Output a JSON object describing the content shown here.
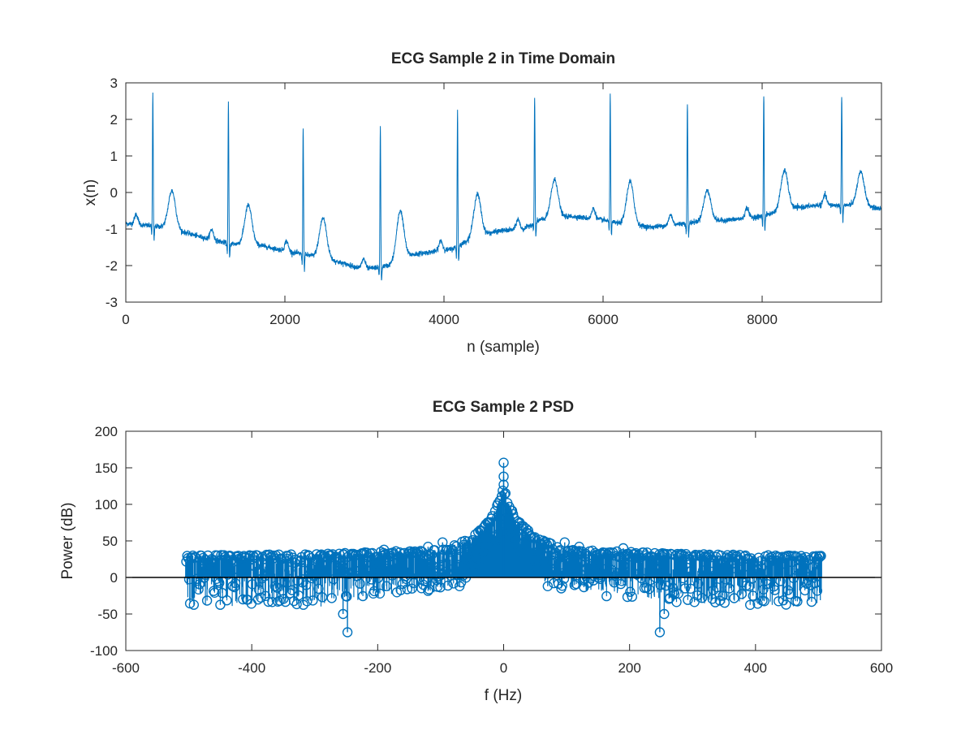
{
  "figure": {
    "background": "#ffffff",
    "axis_color": "#262626",
    "series_color": "#0072BD",
    "baseline_color": "#000000"
  },
  "chart_data": [
    {
      "type": "line",
      "title": "ECG Sample 2 in Time Domain",
      "xlabel": "n (sample)",
      "ylabel": "x(n)",
      "xlim": [
        0,
        9500
      ],
      "ylim": [
        -3,
        3
      ],
      "xticks": [
        0,
        2000,
        4000,
        6000,
        8000
      ],
      "xtick_labels": [
        "0",
        "2000",
        "4000",
        "6000",
        "8000"
      ],
      "yticks": [
        -3,
        -2,
        -1,
        0,
        1,
        2,
        3
      ],
      "ytick_labels": [
        "-3",
        "-2",
        "-1",
        "0",
        "1",
        "2",
        "3"
      ],
      "grid": false,
      "series": [
        {
          "color": "#0072BD",
          "baseline": [
            [
              0,
              -0.85
            ],
            [
              500,
              -0.95
            ],
            [
              1000,
              -1.25
            ],
            [
              1300,
              -1.4
            ],
            [
              1700,
              -1.45
            ],
            [
              2000,
              -1.6
            ],
            [
              2500,
              -1.8
            ],
            [
              3000,
              -2.1
            ],
            [
              3300,
              -2.0
            ],
            [
              3600,
              -1.7
            ],
            [
              4100,
              -1.55
            ],
            [
              4400,
              -1.2
            ],
            [
              4700,
              -1.05
            ],
            [
              5000,
              -1.0
            ],
            [
              5200,
              -0.75
            ],
            [
              5600,
              -0.65
            ],
            [
              6000,
              -0.75
            ],
            [
              6200,
              -0.85
            ],
            [
              6600,
              -0.95
            ],
            [
              7000,
              -0.85
            ],
            [
              7200,
              -0.8
            ],
            [
              7600,
              -0.75
            ],
            [
              8000,
              -0.65
            ],
            [
              8300,
              -0.45
            ],
            [
              8700,
              -0.35
            ],
            [
              9200,
              -0.35
            ],
            [
              9500,
              -0.45
            ]
          ],
          "r_peaks": [
            [
              340,
              2.72
            ],
            [
              1290,
              2.45
            ],
            [
              2230,
              1.82
            ],
            [
              3200,
              1.8
            ],
            [
              4170,
              2.25
            ],
            [
              5140,
              2.62
            ],
            [
              6090,
              2.72
            ],
            [
              7060,
              2.45
            ],
            [
              8020,
              2.72
            ],
            [
              9000,
              2.72
            ]
          ],
          "t_waves": [
            [
              580,
              0.05
            ],
            [
              1540,
              -0.35
            ],
            [
              2480,
              -0.7
            ],
            [
              3450,
              -0.5
            ],
            [
              4420,
              -0.05
            ],
            [
              5390,
              0.35
            ],
            [
              6340,
              0.3
            ],
            [
              7310,
              0.05
            ],
            [
              8280,
              0.6
            ],
            [
              9240,
              0.55
            ]
          ]
        }
      ]
    },
    {
      "type": "scatter",
      "subtype": "stem",
      "title": "ECG Sample 2 PSD",
      "xlabel": "f (Hz)",
      "ylabel": "Power (dB)",
      "xlim": [
        -600,
        600
      ],
      "ylim": [
        -100,
        200
      ],
      "xticks": [
        -600,
        -400,
        -200,
        0,
        200,
        400,
        600
      ],
      "xtick_labels": [
        "-600",
        "-400",
        "-200",
        "0",
        "200",
        "400",
        "600"
      ],
      "yticks": [
        -100,
        -50,
        0,
        50,
        100,
        150,
        200
      ],
      "ytick_labels": [
        "-100",
        "-50",
        "0",
        "50",
        "100",
        "150",
        "200"
      ],
      "grid": false,
      "series": [
        {
          "color": "#0072BD",
          "frequency_range": [
            -505,
            505
          ],
          "envelope_upper": [
            [
              -505,
              30
            ],
            [
              -300,
              32
            ],
            [
              -100,
              38
            ],
            [
              -50,
              55
            ],
            [
              -20,
              80
            ],
            [
              -5,
              110
            ],
            [
              0,
              125
            ],
            [
              5,
              110
            ],
            [
              20,
              80
            ],
            [
              50,
              55
            ],
            [
              100,
              38
            ],
            [
              300,
              32
            ],
            [
              505,
              30
            ]
          ],
          "envelope_lower": [
            [
              -505,
              -30
            ],
            [
              -300,
              -30
            ],
            [
              -100,
              -10
            ],
            [
              -60,
              0
            ],
            [
              -20,
              40
            ],
            [
              0,
              70
            ],
            [
              20,
              40
            ],
            [
              60,
              0
            ],
            [
              100,
              -10
            ],
            [
              300,
              -30
            ],
            [
              505,
              -30
            ]
          ],
          "outliers": [
            [
              0,
              157
            ],
            [
              0,
              138
            ],
            [
              0,
              127
            ],
            [
              -248,
              -75
            ],
            [
              248,
              -75
            ],
            [
              -255,
              -50
            ],
            [
              255,
              -50
            ],
            [
              -70,
              -12
            ],
            [
              70,
              -12
            ],
            [
              -97,
              48
            ],
            [
              -120,
              42
            ],
            [
              120,
              42
            ],
            [
              97,
              48
            ],
            [
              190,
              40
            ],
            [
              -190,
              38
            ]
          ]
        }
      ]
    }
  ]
}
